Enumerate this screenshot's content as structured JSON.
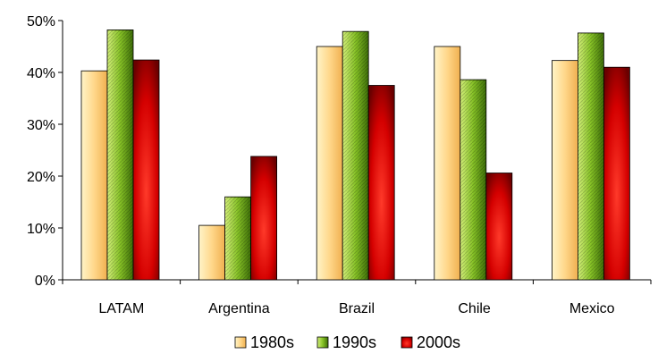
{
  "chart_data": {
    "type": "bar",
    "categories": [
      "LATAM",
      "Argentina",
      "Brazil",
      "Chile",
      "Mexico"
    ],
    "series": [
      {
        "name": "1980s",
        "values": [
          40.3,
          10.5,
          45.0,
          45.0,
          42.3
        ]
      },
      {
        "name": "1990s",
        "values": [
          48.2,
          16.0,
          47.9,
          38.6,
          47.6
        ]
      },
      {
        "name": "2000s",
        "values": [
          42.4,
          23.8,
          37.5,
          20.6,
          41.0
        ]
      }
    ],
    "ylim": [
      0,
      50
    ],
    "yticks": [
      "0%",
      "10%",
      "20%",
      "30%",
      "40%",
      "50%"
    ],
    "grid": false,
    "legend_position": "bottom",
    "colors": {
      "1980s": {
        "light": "#fff4c8",
        "mid": "#ffd78a",
        "dark": "#f0b050"
      },
      "1990s": {
        "light": "#d4f07a",
        "mid": "#86c226",
        "dark": "#3d6e08"
      },
      "2000s": {
        "light": "#ff3a2a",
        "mid": "#d40000",
        "dark": "#6a0000"
      }
    }
  }
}
